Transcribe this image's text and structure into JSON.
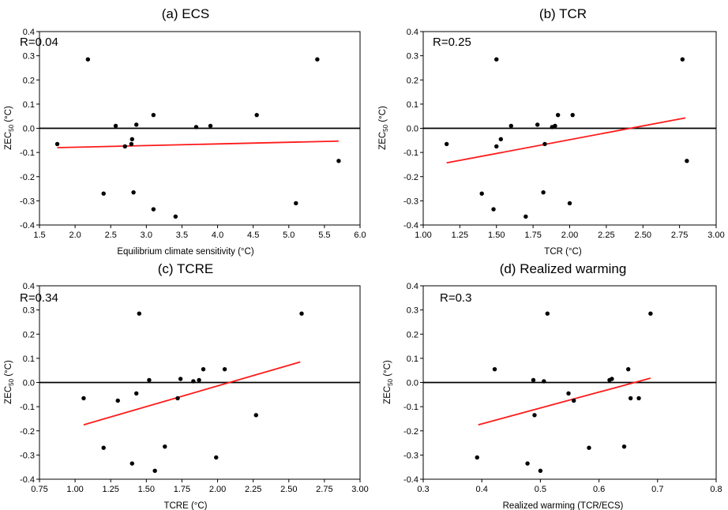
{
  "chart_data": [
    {
      "type": "scatter",
      "title": "(a) ECS",
      "annotation": "R=0.04",
      "xlabel": "Equilibrium climate sensitivity (°C)",
      "ylabel": "ZEC",
      "ylabel_sub": "50",
      "ylabel_unit": " (°C)",
      "xlim": [
        1.5,
        6.0
      ],
      "ylim": [
        -0.4,
        0.4
      ],
      "xticks": [
        1.5,
        2.0,
        2.5,
        3.0,
        3.5,
        4.0,
        4.5,
        5.0,
        5.5,
        6.0
      ],
      "xtick_labels": [
        "1.5",
        "2.0",
        "2.5",
        "3.0",
        "3.5",
        "4.0",
        "4.5",
        "5.0",
        "5.5",
        "6.0"
      ],
      "yticks": [
        -0.4,
        -0.3,
        -0.2,
        -0.1,
        0.0,
        0.1,
        0.2,
        0.3,
        0.4
      ],
      "ytick_labels": [
        "-0.4",
        "-0.3",
        "-0.2",
        "-0.1",
        "0.0",
        "0.1",
        "0.2",
        "0.3",
        "0.4"
      ],
      "points": [
        [
          1.75,
          -0.065
        ],
        [
          2.18,
          0.285
        ],
        [
          2.4,
          -0.27
        ],
        [
          2.57,
          0.01
        ],
        [
          2.7,
          -0.075
        ],
        [
          2.79,
          -0.065
        ],
        [
          2.8,
          -0.045
        ],
        [
          2.82,
          -0.265
        ],
        [
          2.86,
          0.015
        ],
        [
          3.1,
          0.055
        ],
        [
          3.1,
          -0.335
        ],
        [
          3.41,
          -0.365
        ],
        [
          3.7,
          0.005
        ],
        [
          3.9,
          0.01
        ],
        [
          4.55,
          0.055
        ],
        [
          5.1,
          -0.31
        ],
        [
          5.4,
          0.285
        ],
        [
          5.7,
          -0.135
        ]
      ],
      "fit_line": [
        [
          1.75,
          -0.08
        ],
        [
          5.7,
          -0.053
        ]
      ]
    },
    {
      "type": "scatter",
      "title": "(b) TCR",
      "annotation": "R=0.25",
      "xlabel": "TCR (°C)",
      "ylabel": "ZEC",
      "ylabel_sub": "50",
      "ylabel_unit": " (°C)",
      "xlim": [
        1.0,
        3.0
      ],
      "ylim": [
        -0.4,
        0.4
      ],
      "xticks": [
        1.0,
        1.25,
        1.5,
        1.75,
        2.0,
        2.25,
        2.5,
        2.75,
        3.0
      ],
      "xtick_labels": [
        "1.00",
        "1.25",
        "1.50",
        "1.75",
        "2.00",
        "2.25",
        "2.50",
        "2.75",
        "3.00"
      ],
      "yticks": [
        -0.4,
        -0.3,
        -0.2,
        -0.1,
        0.0,
        0.1,
        0.2,
        0.3,
        0.4
      ],
      "ytick_labels": [
        "-0.4",
        "-0.3",
        "-0.2",
        "-0.1",
        "0.0",
        "0.1",
        "0.2",
        "0.3",
        "0.4"
      ],
      "points": [
        [
          1.16,
          -0.065
        ],
        [
          1.4,
          -0.27
        ],
        [
          1.48,
          -0.335
        ],
        [
          1.5,
          0.285
        ],
        [
          1.5,
          -0.075
        ],
        [
          1.53,
          -0.045
        ],
        [
          1.6,
          0.01
        ],
        [
          1.7,
          -0.365
        ],
        [
          1.78,
          0.015
        ],
        [
          1.82,
          -0.265
        ],
        [
          1.83,
          -0.065
        ],
        [
          1.88,
          0.005
        ],
        [
          1.9,
          0.01
        ],
        [
          1.92,
          0.055
        ],
        [
          2.0,
          -0.31
        ],
        [
          2.02,
          0.055
        ],
        [
          2.77,
          0.285
        ],
        [
          2.8,
          -0.135
        ]
      ],
      "fit_line": [
        [
          1.16,
          -0.143
        ],
        [
          2.79,
          0.043
        ]
      ]
    },
    {
      "type": "scatter",
      "title": "(c) TCRE",
      "annotation": "R=0.34",
      "xlabel": "TCRE (°C)",
      "ylabel": "ZEC",
      "ylabel_sub": "50",
      "ylabel_unit": " (°C)",
      "xlim": [
        0.75,
        3.0
      ],
      "ylim": [
        -0.4,
        0.4
      ],
      "xticks": [
        0.75,
        1.0,
        1.25,
        1.5,
        1.75,
        2.0,
        2.25,
        2.5,
        2.75,
        3.0
      ],
      "xtick_labels": [
        "0.75",
        "1.00",
        "1.25",
        "1.50",
        "1.75",
        "2.00",
        "2.25",
        "2.50",
        "2.75",
        "3.00"
      ],
      "yticks": [
        -0.4,
        -0.3,
        -0.2,
        -0.1,
        0.0,
        0.1,
        0.2,
        0.3,
        0.4
      ],
      "ytick_labels": [
        "-0.4",
        "-0.3",
        "-0.2",
        "-0.1",
        "0.0",
        "0.1",
        "0.2",
        "0.3",
        "0.4"
      ],
      "points": [
        [
          1.06,
          -0.065
        ],
        [
          1.2,
          -0.27
        ],
        [
          1.3,
          -0.075
        ],
        [
          1.4,
          -0.335
        ],
        [
          1.43,
          -0.045
        ],
        [
          1.45,
          0.285
        ],
        [
          1.52,
          0.01
        ],
        [
          1.56,
          -0.365
        ],
        [
          1.63,
          -0.265
        ],
        [
          1.72,
          -0.065
        ],
        [
          1.74,
          0.015
        ],
        [
          1.83,
          0.005
        ],
        [
          1.87,
          0.01
        ],
        [
          1.9,
          0.055
        ],
        [
          1.99,
          -0.31
        ],
        [
          2.05,
          0.055
        ],
        [
          2.27,
          -0.135
        ],
        [
          2.59,
          0.285
        ]
      ],
      "fit_line": [
        [
          1.06,
          -0.175
        ],
        [
          2.58,
          0.085
        ]
      ]
    },
    {
      "type": "scatter",
      "title": "(d) Realized warming",
      "annotation": "R=0.3",
      "xlabel": "Realized warming (TCR/ECS)",
      "ylabel": "ZEC",
      "ylabel_sub": "50",
      "ylabel_unit": " (°C)",
      "xlim": [
        0.3,
        0.8
      ],
      "ylim": [
        -0.4,
        0.4
      ],
      "xticks": [
        0.3,
        0.4,
        0.5,
        0.6,
        0.7,
        0.8
      ],
      "xtick_labels": [
        "0.3",
        "0.4",
        "0.5",
        "0.6",
        "0.7",
        "0.8"
      ],
      "yticks": [
        -0.4,
        -0.3,
        -0.2,
        -0.1,
        0.0,
        0.1,
        0.2,
        0.3,
        0.4
      ],
      "ytick_labels": [
        "-0.4",
        "-0.3",
        "-0.2",
        "-0.1",
        "0.0",
        "0.1",
        "0.2",
        "0.3",
        "0.4"
      ],
      "points": [
        [
          0.392,
          -0.31
        ],
        [
          0.422,
          0.055
        ],
        [
          0.478,
          -0.335
        ],
        [
          0.488,
          0.01
        ],
        [
          0.49,
          -0.135
        ],
        [
          0.5,
          -0.365
        ],
        [
          0.506,
          0.005
        ],
        [
          0.512,
          0.285
        ],
        [
          0.548,
          -0.045
        ],
        [
          0.557,
          -0.075
        ],
        [
          0.583,
          -0.27
        ],
        [
          0.618,
          0.01
        ],
        [
          0.622,
          0.015
        ],
        [
          0.643,
          -0.265
        ],
        [
          0.65,
          0.055
        ],
        [
          0.654,
          -0.065
        ],
        [
          0.668,
          -0.065
        ],
        [
          0.688,
          0.285
        ]
      ],
      "fit_line": [
        [
          0.394,
          -0.175
        ],
        [
          0.688,
          0.018
        ]
      ]
    }
  ]
}
